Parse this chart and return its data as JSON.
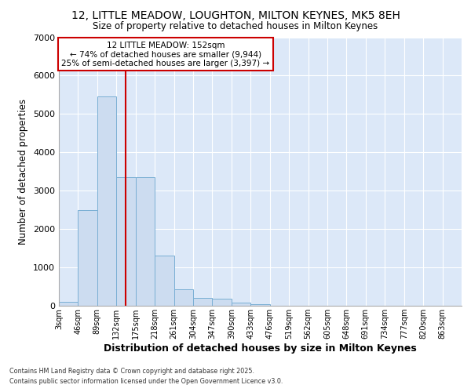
{
  "title_line1": "12, LITTLE MEADOW, LOUGHTON, MILTON KEYNES, MK5 8EH",
  "title_line2": "Size of property relative to detached houses in Milton Keynes",
  "xlabel": "Distribution of detached houses by size in Milton Keynes",
  "ylabel": "Number of detached properties",
  "bins": [
    "3sqm",
    "46sqm",
    "89sqm",
    "132sqm",
    "175sqm",
    "218sqm",
    "261sqm",
    "304sqm",
    "347sqm",
    "390sqm",
    "433sqm",
    "476sqm",
    "519sqm",
    "562sqm",
    "605sqm",
    "648sqm",
    "691sqm",
    "734sqm",
    "777sqm",
    "820sqm",
    "863sqm"
  ],
  "bin_edges": [
    3,
    46,
    89,
    132,
    175,
    218,
    261,
    304,
    347,
    390,
    433,
    476,
    519,
    562,
    605,
    648,
    691,
    734,
    777,
    820,
    863
  ],
  "bar_heights": [
    100,
    2500,
    5450,
    3350,
    3350,
    1300,
    420,
    200,
    185,
    80,
    50,
    0,
    0,
    0,
    0,
    0,
    0,
    0,
    0,
    0
  ],
  "bar_color": "#ccdcf0",
  "bar_edgecolor": "#7aafd4",
  "vline_x": 152,
  "vline_color": "#cc0000",
  "annotation_title": "12 LITTLE MEADOW: 152sqm",
  "annotation_line1": "← 74% of detached houses are smaller (9,944)",
  "annotation_line2": "25% of semi-detached houses are larger (3,397) →",
  "annotation_box_color": "#cc0000",
  "ylim": [
    0,
    7000
  ],
  "yticks": [
    0,
    1000,
    2000,
    3000,
    4000,
    5000,
    6000,
    7000
  ],
  "fig_background": "#ffffff",
  "plot_background": "#dce8f8",
  "footer_line1": "Contains HM Land Registry data © Crown copyright and database right 2025.",
  "footer_line2": "Contains public sector information licensed under the Open Government Licence v3.0.",
  "grid_color": "#ffffff"
}
